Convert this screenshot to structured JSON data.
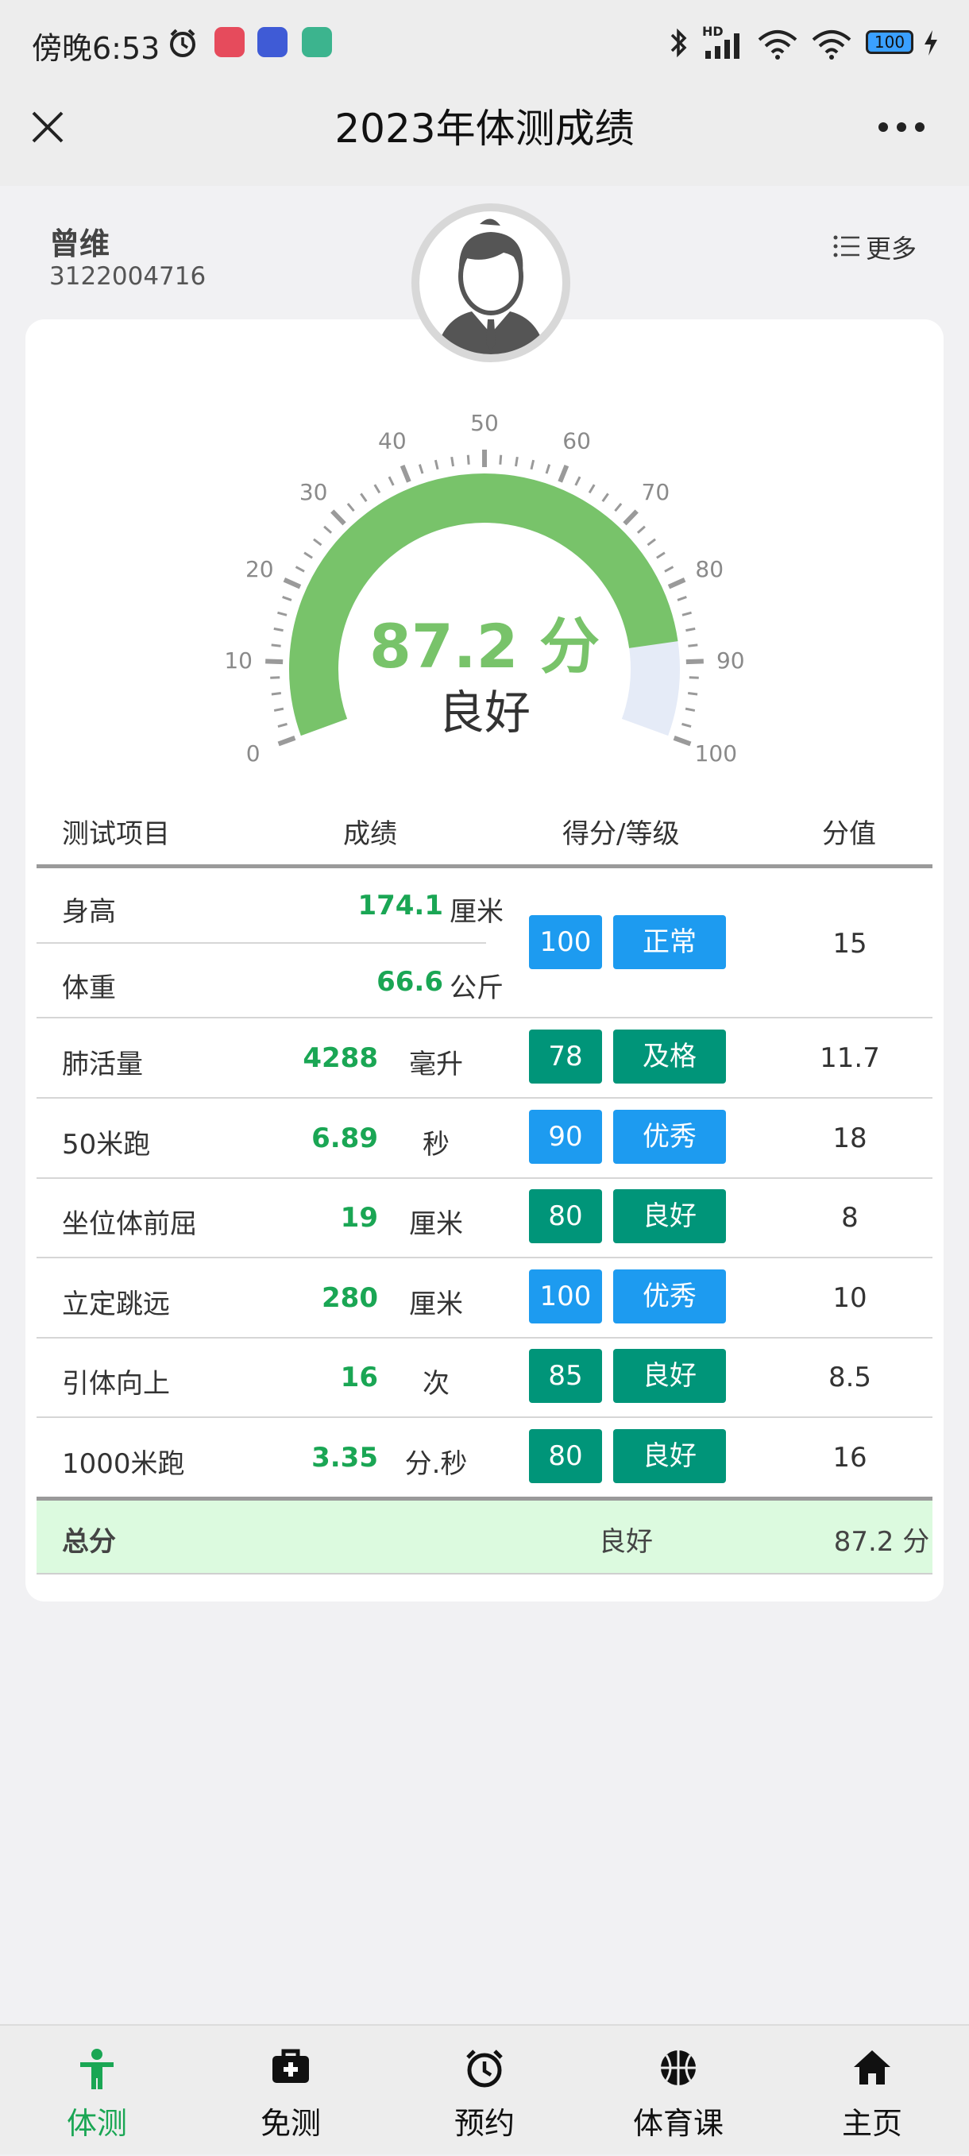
{
  "status_bar": {
    "time": "傍晚6:53",
    "battery": "100",
    "signal_label": "HD"
  },
  "title_bar": {
    "title": "2023年体测成绩"
  },
  "profile": {
    "name": "曾维",
    "id": "3122004716",
    "more_label": "更多"
  },
  "gauge": {
    "score_text": "87.2 分",
    "grade": "良好",
    "value": 87.2,
    "max": 100,
    "tick_labels": [
      "0",
      "10",
      "20",
      "30",
      "40",
      "50",
      "60",
      "70",
      "80",
      "90",
      "100"
    ],
    "colors": {
      "fill": "#78c36a",
      "empty": "#e5ebf7",
      "ticks": "#9a9a9a"
    }
  },
  "table": {
    "headers": [
      "测试项目",
      "成绩",
      "得分/等级",
      "分值"
    ],
    "rows": [
      {
        "name": "身高",
        "value": "174.1",
        "unit": "厘米"
      },
      {
        "name": "体重",
        "value": "66.6",
        "unit": "公斤"
      },
      {
        "name": "肺活量",
        "value": "4288",
        "unit": "毫升",
        "score": "78",
        "level": "及格",
        "points": "11.7",
        "score_color": "teal",
        "level_color": "teal"
      },
      {
        "name": "50米跑",
        "value": "6.89",
        "unit": "秒",
        "score": "90",
        "level": "优秀",
        "points": "18",
        "score_color": "blue",
        "level_color": "blue"
      },
      {
        "name": "坐位体前屈",
        "value": "19",
        "unit": "厘米",
        "score": "80",
        "level": "良好",
        "points": "8",
        "score_color": "teal",
        "level_color": "teal"
      },
      {
        "name": "立定跳远",
        "value": "280",
        "unit": "厘米",
        "score": "100",
        "level": "优秀",
        "points": "10",
        "score_color": "blue",
        "level_color": "blue"
      },
      {
        "name": "引体向上",
        "value": "16",
        "unit": "次",
        "score": "85",
        "level": "良好",
        "points": "8.5",
        "score_color": "teal",
        "level_color": "teal"
      },
      {
        "name": "1000米跑",
        "value": "3.35",
        "unit": "分.秒",
        "score": "80",
        "level": "良好",
        "points": "16",
        "score_color": "teal",
        "level_color": "teal"
      }
    ],
    "bmi_group": {
      "score": "100",
      "level": "正常",
      "points": "15"
    },
    "total": {
      "label": "总分",
      "level": "良好",
      "points": "87.2 分"
    }
  },
  "tabs": [
    {
      "label": "体测",
      "icon": "person-icon",
      "active": true
    },
    {
      "label": "免测",
      "icon": "medical-kit-icon",
      "active": false
    },
    {
      "label": "预约",
      "icon": "alarm-clock-icon",
      "active": false
    },
    {
      "label": "体育课",
      "icon": "basketball-icon",
      "active": false
    },
    {
      "label": "主页",
      "icon": "home-icon",
      "active": false
    }
  ],
  "colors": {
    "accent_green": "#1aa654",
    "badge_blue": "#1d9bf0",
    "badge_teal": "#009579",
    "total_row_bg": "#dcfadf"
  }
}
